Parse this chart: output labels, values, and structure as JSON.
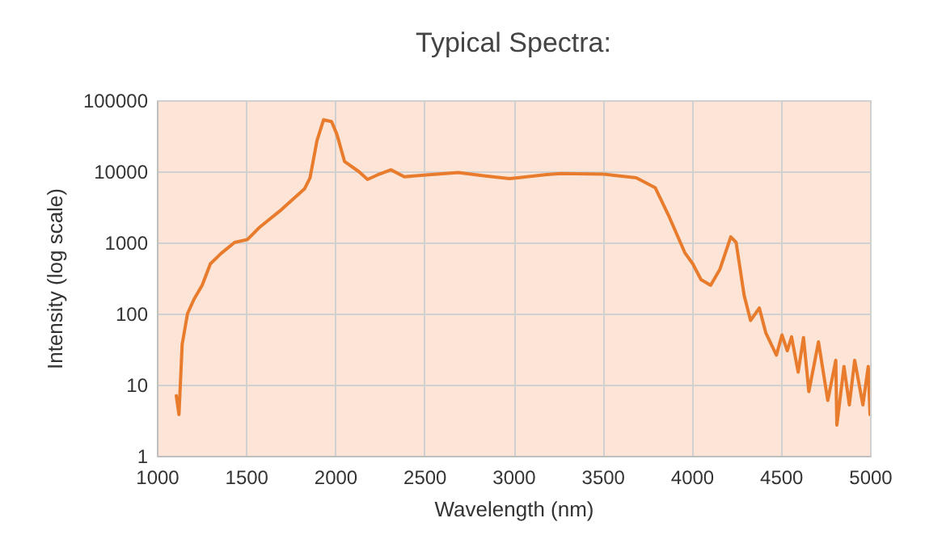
{
  "chart_data": {
    "type": "line",
    "title": "Typical Spectra:",
    "xlabel": "Wavelength (nm)",
    "ylabel": "Intensity (log scale)",
    "log": "y",
    "grid": true,
    "xlim": [
      1000,
      5000
    ],
    "xticks": [
      1000,
      1500,
      2000,
      2500,
      3000,
      3500,
      4000,
      4500,
      5000
    ],
    "ylim": [
      1,
      100000
    ],
    "yticks": [
      1,
      10,
      100,
      1000,
      10000,
      100000
    ],
    "x": [
      1109,
      1124,
      1142,
      1172,
      1209,
      1254,
      1300,
      1360,
      1436,
      1508,
      1572,
      1692,
      1829,
      1859,
      1898,
      1935,
      1980,
      2010,
      2053,
      2131,
      2182,
      2237,
      2313,
      2388,
      2540,
      2691,
      2842,
      2978,
      3024,
      3187,
      3266,
      3508,
      3689,
      3795,
      3870,
      3961,
      4006,
      4052,
      4106,
      4158,
      4219,
      4249,
      4294,
      4330,
      4379,
      4415,
      4475,
      4506,
      4536,
      4560,
      4597,
      4627,
      4657,
      4711,
      4763,
      4808,
      4814,
      4854,
      4884,
      4914,
      4960,
      4990,
      5000
    ],
    "series": [
      {
        "color": "#e97b2c",
        "values": [
          7,
          3.8,
          37,
          100,
          160,
          250,
          500,
          700,
          1000,
          1100,
          1600,
          2800,
          5700,
          8100,
          27000,
          53000,
          50000,
          33000,
          13700,
          10000,
          7700,
          8900,
          10500,
          8400,
          9000,
          9600,
          8600,
          7900,
          8100,
          9000,
          9300,
          9100,
          8100,
          5900,
          2400,
          720,
          500,
          300,
          250,
          420,
          1200,
          1000,
          180,
          80,
          120,
          54,
          26,
          50,
          30,
          47,
          15,
          46,
          8,
          40,
          6,
          22,
          2.7,
          18,
          5.2,
          22,
          5.2,
          18,
          3.8
        ]
      }
    ]
  }
}
